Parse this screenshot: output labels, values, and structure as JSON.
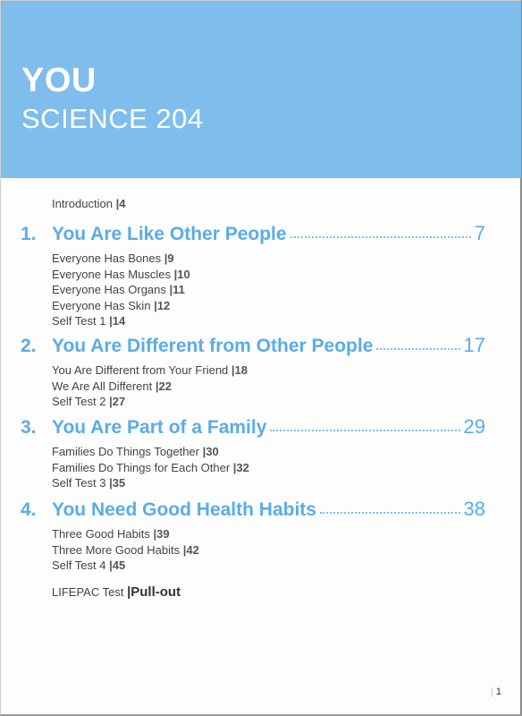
{
  "header": {
    "title": "YOU",
    "subtitle": "SCIENCE 204"
  },
  "intro": {
    "label": "Introduction",
    "page": "|4"
  },
  "sections": [
    {
      "num": "1.",
      "title": "You Are Like Other People",
      "page": "7",
      "items": [
        {
          "label": "Everyone Has Bones",
          "page": "|9"
        },
        {
          "label": "Everyone Has Muscles",
          "page": "|10"
        },
        {
          "label": "Everyone Has Organs",
          "page": "|11"
        },
        {
          "label": "Everyone Has Skin",
          "page": "|12"
        },
        {
          "label": "Self Test 1",
          "page": "|14"
        }
      ]
    },
    {
      "num": "2.",
      "title": "You Are Different from Other People",
      "page": "17",
      "items": [
        {
          "label": "You Are Different from Your Friend",
          "page": "|18"
        },
        {
          "label": "We Are All Different",
          "page": "|22"
        },
        {
          "label": "Self Test 2",
          "page": "|27"
        }
      ]
    },
    {
      "num": "3.",
      "title": "You Are Part of a Family",
      "page": "29",
      "items": [
        {
          "label": "Families Do Things Together",
          "page": "|30"
        },
        {
          "label": "Families Do Things for Each Other",
          "page": "|32"
        },
        {
          "label": "Self Test 3",
          "page": "|35"
        }
      ]
    },
    {
      "num": "4.",
      "title": "You Need Good Health Habits",
      "page": "38",
      "items": [
        {
          "label": "Three Good Habits",
          "page": "|39"
        },
        {
          "label": "Three More Good Habits",
          "page": "|42"
        },
        {
          "label": "Self Test 4",
          "page": "|45"
        }
      ]
    }
  ],
  "lifepac": {
    "label": "LIFEPAC Test",
    "page": "|Pull-out"
  },
  "folio": {
    "bar": "|",
    "page": "1"
  },
  "colors": {
    "accent": "#7fbdec",
    "heading": "#5aace6"
  }
}
